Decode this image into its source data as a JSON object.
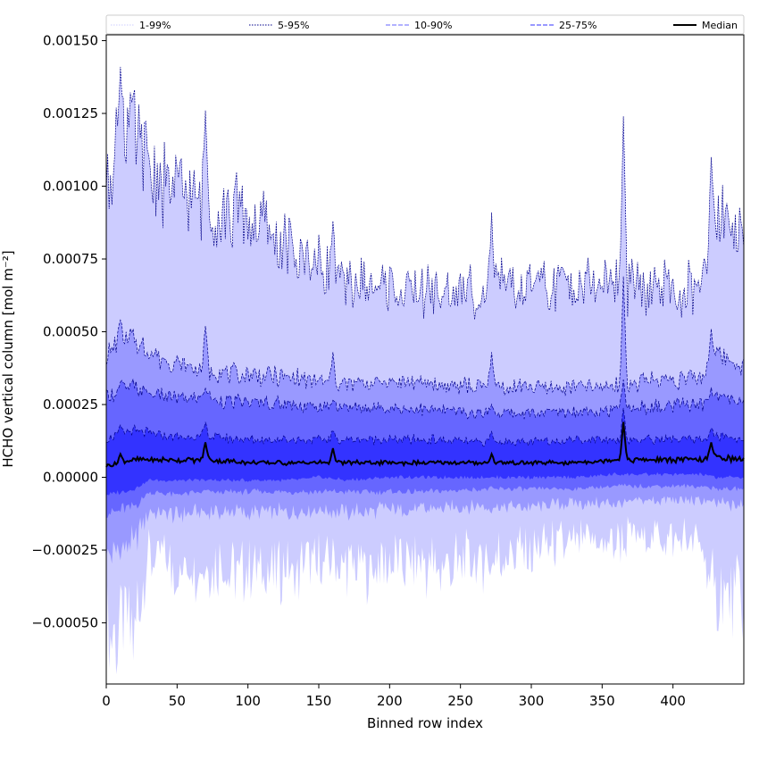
{
  "chart_data": {
    "type": "area",
    "title": "",
    "xlabel": "Binned row index",
    "ylabel": "HCHO vertical column [mol m⁻²]",
    "xlim": [
      0,
      450
    ],
    "ylim": [
      -0.00071,
      0.00152
    ],
    "x_ticks": [
      0,
      50,
      100,
      150,
      200,
      250,
      300,
      350,
      400
    ],
    "x_tick_labels": [
      "0",
      "50",
      "100",
      "150",
      "200",
      "250",
      "300",
      "350",
      "400"
    ],
    "y_ticks": [
      -0.0005,
      -0.00025,
      0.0,
      0.00025,
      0.0005,
      0.00075,
      0.001,
      0.00125,
      0.0015
    ],
    "y_tick_labels": [
      "−0.00050",
      "−0.00025",
      "0.00000",
      "0.00025",
      "0.00050",
      "0.00075",
      "0.00100",
      "0.00125",
      "0.00150"
    ],
    "legend_position": "top (above axes, single row)",
    "legend": [
      {
        "label": "1-99%",
        "color": "#ccccff",
        "style": "dotted"
      },
      {
        "label": "5-95%",
        "color": "#00008b",
        "style": "dotted"
      },
      {
        "label": "10-90%",
        "color": "#6666ff",
        "style": "dashed"
      },
      {
        "label": "25-75%",
        "color": "#3333ff",
        "style": "dashed"
      },
      {
        "label": "Median",
        "color": "#000000",
        "style": "solid"
      }
    ],
    "band_colors": {
      "p1_99": "#ccccff",
      "p5_95": "#9999ff",
      "p10_90": "#6666ff",
      "p25_75": "#3333ff",
      "median": "#000000",
      "edge": "#00008b"
    },
    "x_anchor": [
      0,
      10,
      20,
      30,
      50,
      70,
      100,
      130,
      150,
      170,
      200,
      230,
      260,
      300,
      330,
      360,
      380,
      420,
      430,
      450
    ],
    "series": [
      {
        "name": "1%",
        "values": [
          -0.00058,
          -0.00055,
          -0.0005,
          -0.00028,
          -0.00032,
          -0.0003,
          -0.00033,
          -0.00032,
          -0.0003,
          -0.00031,
          -0.0003,
          -0.00031,
          -0.00029,
          -0.00026,
          -0.00023,
          -0.00022,
          -0.0002,
          -0.00022,
          -0.00042,
          -0.00044
        ]
      },
      {
        "name": "5%",
        "values": [
          -0.00026,
          -0.00024,
          -0.00022,
          -0.00012,
          -0.00013,
          -0.00012,
          -0.00012,
          -0.00012,
          -0.00011,
          -0.00012,
          -0.00011,
          -0.00011,
          -0.0001,
          -0.0001,
          -9e-05,
          -9e-05,
          -8e-05,
          -8e-05,
          -9e-05,
          -0.0001
        ]
      },
      {
        "name": "10%",
        "values": [
          -0.00012,
          -0.00011,
          -0.0001,
          -5e-05,
          -6e-05,
          -5e-05,
          -5e-05,
          -5e-05,
          -5e-05,
          -5e-05,
          -5e-05,
          -5e-05,
          -4e-05,
          -4e-05,
          -4e-05,
          -3e-05,
          -3e-05,
          -3e-05,
          -4e-05,
          -4e-05
        ]
      },
      {
        "name": "25%",
        "values": [
          -6e-05,
          -5e-05,
          -4e-05,
          -1e-05,
          -1e-05,
          -1e-05,
          -1e-05,
          -1e-05,
          0.0,
          -1e-05,
          0.0,
          0.0,
          0.0,
          0.0,
          0.0,
          1e-05,
          1e-05,
          1e-05,
          0.0,
          0.0
        ]
      },
      {
        "name": "Median",
        "values": [
          4e-05,
          5e-05,
          6e-05,
          6e-05,
          6e-05,
          6e-05,
          5e-05,
          5e-05,
          5e-05,
          5e-05,
          5e-05,
          5e-05,
          5e-05,
          5e-05,
          5e-05,
          6e-05,
          6e-05,
          6e-05,
          7e-05,
          6e-05
        ]
      },
      {
        "name": "75%",
        "values": [
          0.00013,
          0.00015,
          0.00016,
          0.00015,
          0.00014,
          0.00014,
          0.00013,
          0.00013,
          0.00013,
          0.00013,
          0.00013,
          0.00013,
          0.00012,
          0.00012,
          0.00013,
          0.00013,
          0.00013,
          0.00013,
          0.00014,
          0.00013
        ]
      },
      {
        "name": "90%",
        "values": [
          0.00027,
          0.0003,
          0.00031,
          0.00029,
          0.00027,
          0.00027,
          0.00026,
          0.00025,
          0.00024,
          0.00024,
          0.00024,
          0.00023,
          0.00022,
          0.00022,
          0.00023,
          0.00023,
          0.00024,
          0.00025,
          0.00028,
          0.00026
        ]
      },
      {
        "name": "95%",
        "values": [
          0.00042,
          0.00047,
          0.00047,
          0.00043,
          0.00039,
          0.00037,
          0.00035,
          0.00034,
          0.00033,
          0.00032,
          0.00033,
          0.00032,
          0.00031,
          0.00031,
          0.00031,
          0.00031,
          0.00033,
          0.00034,
          0.00042,
          0.00038
        ]
      },
      {
        "name": "99%",
        "values": [
          0.001,
          0.00123,
          0.00115,
          0.00105,
          0.00098,
          0.00093,
          0.0009,
          0.00078,
          0.00073,
          0.00065,
          0.00066,
          0.00063,
          0.00064,
          0.00066,
          0.00066,
          0.00067,
          0.00064,
          0.00064,
          0.00092,
          0.00085
        ]
      }
    ],
    "spikes": [
      {
        "x": 10,
        "p99": 0.00141,
        "p95": 0.00054,
        "median": 8e-05
      },
      {
        "x": 70,
        "p99": 0.00126,
        "p95": 0.00052,
        "median": 0.00012
      },
      {
        "x": 160,
        "p99": 0.00088,
        "p95": 0.00043,
        "median": 0.0001
      },
      {
        "x": 272,
        "p99": 0.00091,
        "p95": 0.00043,
        "median": 8e-05
      },
      {
        "x": 365,
        "p99": 0.00124,
        "p95": 0.00069,
        "median": 0.00019
      },
      {
        "x": 427,
        "p99": 0.0011,
        "p95": 0.00051,
        "median": 0.00012
      }
    ]
  }
}
